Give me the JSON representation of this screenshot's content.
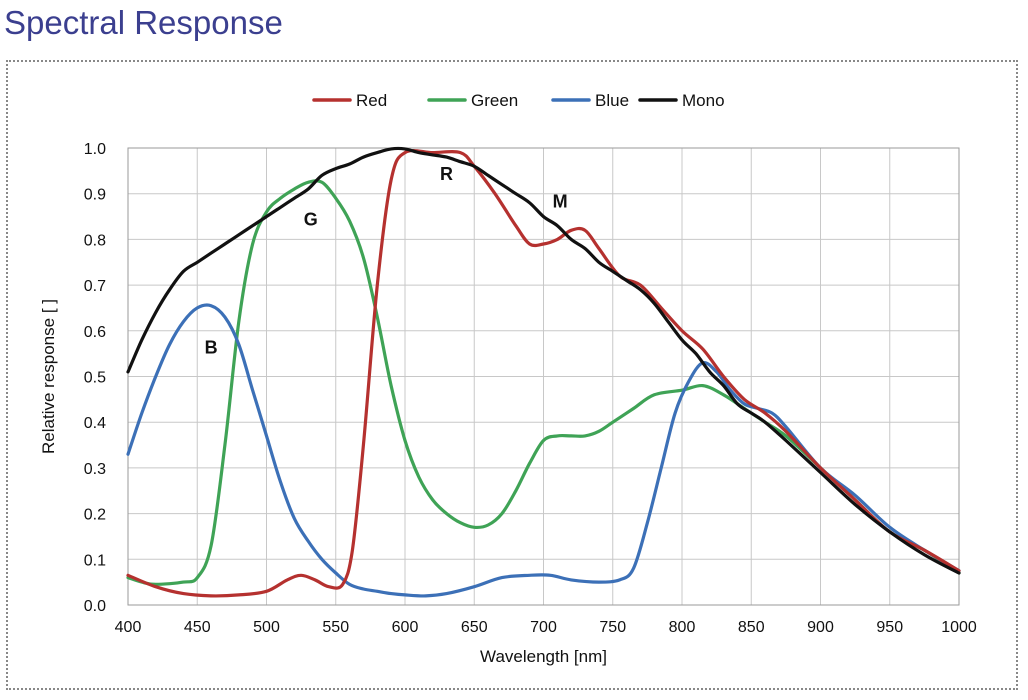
{
  "page": {
    "title": "Spectral Response"
  },
  "chart_data": {
    "type": "line",
    "xlabel": "Wavelength [nm]",
    "ylabel": "Relative response [ ]",
    "xlim": [
      400,
      1000
    ],
    "ylim": [
      0,
      1.0
    ],
    "grid": true,
    "legend_placement": "top",
    "x_ticks": [
      "400",
      "450",
      "500",
      "550",
      "600",
      "650",
      "700",
      "750",
      "800",
      "850",
      "900",
      "950",
      "1000"
    ],
    "y_ticks": [
      "0.0",
      "0.1",
      "0.2",
      "0.3",
      "0.4",
      "0.5",
      "0.6",
      "0.7",
      "0.8",
      "0.9",
      "1.0"
    ],
    "series": [
      {
        "name": "Red",
        "color": "#b5312f",
        "points": [
          [
            400,
            0.065
          ],
          [
            420,
            0.04
          ],
          [
            440,
            0.025
          ],
          [
            460,
            0.02
          ],
          [
            480,
            0.022
          ],
          [
            500,
            0.03
          ],
          [
            515,
            0.055
          ],
          [
            525,
            0.065
          ],
          [
            535,
            0.055
          ],
          [
            545,
            0.04
          ],
          [
            555,
            0.045
          ],
          [
            562,
            0.12
          ],
          [
            570,
            0.35
          ],
          [
            580,
            0.7
          ],
          [
            590,
            0.93
          ],
          [
            600,
            0.99
          ],
          [
            620,
            0.99
          ],
          [
            640,
            0.99
          ],
          [
            650,
            0.96
          ],
          [
            665,
            0.9
          ],
          [
            680,
            0.83
          ],
          [
            690,
            0.79
          ],
          [
            700,
            0.79
          ],
          [
            710,
            0.8
          ],
          [
            720,
            0.82
          ],
          [
            730,
            0.82
          ],
          [
            740,
            0.78
          ],
          [
            755,
            0.72
          ],
          [
            770,
            0.7
          ],
          [
            785,
            0.65
          ],
          [
            800,
            0.6
          ],
          [
            815,
            0.56
          ],
          [
            830,
            0.5
          ],
          [
            845,
            0.45
          ],
          [
            860,
            0.42
          ],
          [
            875,
            0.38
          ],
          [
            900,
            0.3
          ],
          [
            925,
            0.23
          ],
          [
            950,
            0.16
          ],
          [
            975,
            0.12
          ],
          [
            1000,
            0.075
          ]
        ]
      },
      {
        "name": "Green",
        "color": "#3fa356",
        "points": [
          [
            400,
            0.06
          ],
          [
            410,
            0.05
          ],
          [
            420,
            0.045
          ],
          [
            440,
            0.05
          ],
          [
            450,
            0.06
          ],
          [
            460,
            0.13
          ],
          [
            470,
            0.35
          ],
          [
            480,
            0.62
          ],
          [
            490,
            0.79
          ],
          [
            500,
            0.86
          ],
          [
            510,
            0.89
          ],
          [
            520,
            0.91
          ],
          [
            530,
            0.925
          ],
          [
            540,
            0.925
          ],
          [
            550,
            0.89
          ],
          [
            560,
            0.84
          ],
          [
            570,
            0.76
          ],
          [
            580,
            0.63
          ],
          [
            590,
            0.48
          ],
          [
            600,
            0.36
          ],
          [
            610,
            0.28
          ],
          [
            620,
            0.23
          ],
          [
            630,
            0.2
          ],
          [
            640,
            0.18
          ],
          [
            650,
            0.17
          ],
          [
            660,
            0.175
          ],
          [
            670,
            0.2
          ],
          [
            680,
            0.25
          ],
          [
            690,
            0.31
          ],
          [
            700,
            0.36
          ],
          [
            710,
            0.37
          ],
          [
            720,
            0.37
          ],
          [
            730,
            0.37
          ],
          [
            740,
            0.38
          ],
          [
            750,
            0.4
          ],
          [
            765,
            0.43
          ],
          [
            780,
            0.46
          ],
          [
            800,
            0.47
          ],
          [
            815,
            0.48
          ],
          [
            830,
            0.46
          ],
          [
            845,
            0.43
          ],
          [
            860,
            0.4
          ],
          [
            875,
            0.37
          ],
          [
            900,
            0.3
          ],
          [
            925,
            0.23
          ],
          [
            950,
            0.16
          ],
          [
            975,
            0.12
          ],
          [
            1000,
            0.07
          ]
        ]
      },
      {
        "name": "Blue",
        "color": "#3c70b7",
        "points": [
          [
            400,
            0.33
          ],
          [
            410,
            0.42
          ],
          [
            420,
            0.5
          ],
          [
            430,
            0.57
          ],
          [
            440,
            0.62
          ],
          [
            450,
            0.65
          ],
          [
            460,
            0.655
          ],
          [
            470,
            0.63
          ],
          [
            480,
            0.57
          ],
          [
            490,
            0.47
          ],
          [
            500,
            0.37
          ],
          [
            510,
            0.27
          ],
          [
            520,
            0.19
          ],
          [
            530,
            0.14
          ],
          [
            540,
            0.1
          ],
          [
            550,
            0.07
          ],
          [
            560,
            0.045
          ],
          [
            570,
            0.035
          ],
          [
            580,
            0.03
          ],
          [
            590,
            0.025
          ],
          [
            600,
            0.022
          ],
          [
            615,
            0.02
          ],
          [
            630,
            0.025
          ],
          [
            650,
            0.04
          ],
          [
            670,
            0.06
          ],
          [
            690,
            0.065
          ],
          [
            705,
            0.065
          ],
          [
            720,
            0.055
          ],
          [
            740,
            0.05
          ],
          [
            755,
            0.055
          ],
          [
            765,
            0.08
          ],
          [
            775,
            0.18
          ],
          [
            785,
            0.3
          ],
          [
            795,
            0.42
          ],
          [
            805,
            0.49
          ],
          [
            815,
            0.53
          ],
          [
            825,
            0.51
          ],
          [
            835,
            0.47
          ],
          [
            845,
            0.44
          ],
          [
            855,
            0.43
          ],
          [
            865,
            0.42
          ],
          [
            875,
            0.39
          ],
          [
            900,
            0.3
          ],
          [
            925,
            0.24
          ],
          [
            950,
            0.17
          ],
          [
            975,
            0.12
          ],
          [
            1000,
            0.075
          ]
        ]
      },
      {
        "name": "Mono",
        "color": "#111111",
        "points": [
          [
            400,
            0.51
          ],
          [
            410,
            0.58
          ],
          [
            420,
            0.64
          ],
          [
            430,
            0.69
          ],
          [
            440,
            0.73
          ],
          [
            450,
            0.75
          ],
          [
            460,
            0.77
          ],
          [
            470,
            0.79
          ],
          [
            480,
            0.81
          ],
          [
            490,
            0.83
          ],
          [
            500,
            0.85
          ],
          [
            510,
            0.87
          ],
          [
            520,
            0.89
          ],
          [
            530,
            0.91
          ],
          [
            540,
            0.94
          ],
          [
            550,
            0.955
          ],
          [
            560,
            0.965
          ],
          [
            570,
            0.98
          ],
          [
            580,
            0.99
          ],
          [
            590,
            0.998
          ],
          [
            600,
            0.998
          ],
          [
            610,
            0.99
          ],
          [
            620,
            0.985
          ],
          [
            630,
            0.98
          ],
          [
            640,
            0.97
          ],
          [
            650,
            0.96
          ],
          [
            660,
            0.94
          ],
          [
            670,
            0.92
          ],
          [
            680,
            0.9
          ],
          [
            690,
            0.88
          ],
          [
            700,
            0.85
          ],
          [
            710,
            0.83
          ],
          [
            720,
            0.8
          ],
          [
            730,
            0.78
          ],
          [
            740,
            0.75
          ],
          [
            750,
            0.73
          ],
          [
            760,
            0.71
          ],
          [
            770,
            0.69
          ],
          [
            780,
            0.66
          ],
          [
            790,
            0.62
          ],
          [
            800,
            0.58
          ],
          [
            810,
            0.55
          ],
          [
            820,
            0.51
          ],
          [
            830,
            0.48
          ],
          [
            840,
            0.44
          ],
          [
            850,
            0.42
          ],
          [
            860,
            0.4
          ],
          [
            875,
            0.36
          ],
          [
            900,
            0.29
          ],
          [
            925,
            0.22
          ],
          [
            950,
            0.16
          ],
          [
            975,
            0.11
          ],
          [
            1000,
            0.07
          ]
        ]
      }
    ],
    "annotations": [
      {
        "text": "R",
        "x": 630,
        "y": 0.93
      },
      {
        "text": "M",
        "x": 712,
        "y": 0.87
      },
      {
        "text": "G",
        "x": 532,
        "y": 0.83
      },
      {
        "text": "B",
        "x": 460,
        "y": 0.55
      }
    ]
  }
}
